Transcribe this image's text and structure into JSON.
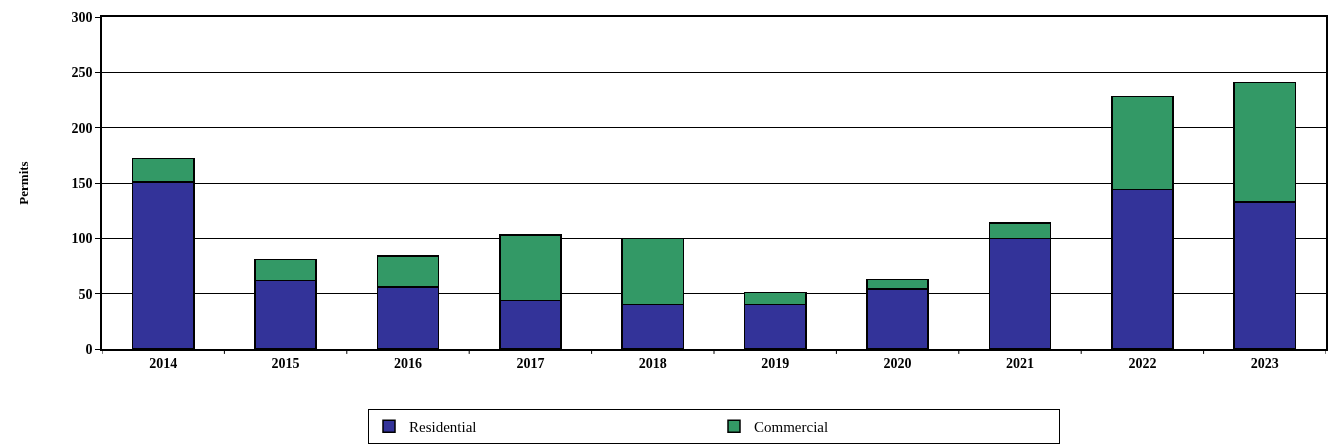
{
  "chart_data": {
    "type": "bar",
    "stacked": true,
    "categories": [
      "2014",
      "2015",
      "2016",
      "2017",
      "2018",
      "2019",
      "2020",
      "2021",
      "2022",
      "2023"
    ],
    "series": [
      {
        "name": "Residential",
        "color": "#333399",
        "values": [
          151,
          62,
          56,
          44,
          40,
          40,
          54,
          100,
          144,
          133
        ]
      },
      {
        "name": "Commercial",
        "color": "#339966",
        "values": [
          21,
          19,
          28,
          59,
          60,
          11,
          9,
          14,
          84,
          108
        ]
      }
    ],
    "ylabel": "Permits",
    "ylim": [
      0,
      300
    ],
    "yticks": [
      0,
      50,
      100,
      150,
      200,
      250,
      300
    ],
    "grid": "y",
    "legend": "bottom"
  }
}
